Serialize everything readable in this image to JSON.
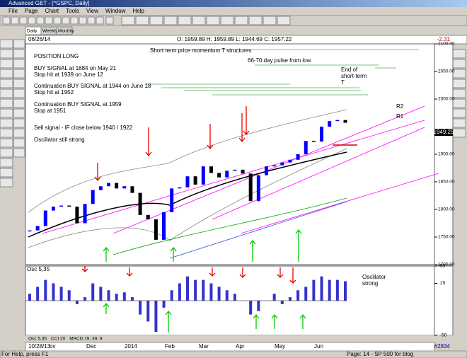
{
  "window": {
    "title": "Advanced GET - [^GSPC, Daily]",
    "menu": [
      "File",
      "Page",
      "Chart",
      "Tools",
      "View",
      "Window",
      "Help"
    ]
  },
  "tabs_top": [
    "Daily",
    "Weekly",
    "Monthly"
  ],
  "header": {
    "date": "06/26/14",
    "ohlc": "O: 1959.89  H: 1959.89  L: 1944.69  C: 1957.22",
    "change": "-2.31"
  },
  "chart_data": {
    "type": "candlestick-close",
    "closes": [
      1762,
      1770,
      1798,
      1805,
      1807,
      1805,
      1775,
      1810,
      1835,
      1842,
      1848,
      1838,
      1842,
      1830,
      1790,
      1782,
      1745,
      1795,
      1838,
      1840,
      1860,
      1845,
      1878,
      1866,
      1858,
      1870,
      1872,
      1865,
      1815,
      1862,
      1878,
      1880,
      1885,
      1890,
      1900,
      1924,
      1923,
      1950,
      1960,
      1962,
      1957
    ],
    "ylim": [
      1700,
      2100
    ],
    "yticks": [
      {
        "value": 2100,
        "label": "2100.00"
      },
      {
        "value": 2050,
        "label": "2050.00"
      },
      {
        "value": 2000,
        "label": "2000.00"
      },
      {
        "value": 1900,
        "label": "1900.00"
      },
      {
        "value": 1850,
        "label": "1850.00"
      },
      {
        "value": 1800,
        "label": "1800.00"
      },
      {
        "value": 1750,
        "label": "1750.00"
      },
      {
        "value": 1700,
        "label": "1700.00"
      }
    ],
    "last_price": "1949.25",
    "up_color": "#0000ff",
    "down_color": "#000000",
    "annotations": [
      "Short term price momentum T structures",
      "POSITION LONG",
      "66-70 day pulse from low",
      "BUY SIGNAL at 1884 on May 21",
      "Stop hit at 1939 on June 12",
      "End of",
      "short-term",
      "T",
      "Continuation BUY SIGNAL at 1944 on June 18",
      "Stop hit at 1952",
      "Continuation BUY SIGNAL at 1959",
      "Stop at 1951",
      "R2",
      "R1",
      "Sell signal - IF close below 1940 / 1922",
      "Oscillator still strong"
    ]
  },
  "oscillator": {
    "type": "bar",
    "title": "Osc 5,35",
    "values": [
      10,
      20,
      30,
      25,
      20,
      15,
      -5,
      5,
      25,
      20,
      15,
      10,
      12,
      5,
      -20,
      -30,
      -45,
      -10,
      15,
      25,
      35,
      30,
      30,
      25,
      20,
      15,
      10,
      0,
      -20,
      -15,
      0,
      10,
      -5,
      5,
      15,
      20,
      30,
      35,
      30,
      30,
      28
    ],
    "ylim": [
      -50,
      50
    ],
    "yticks": [
      50,
      25,
      -50
    ],
    "color": "#3333cc",
    "annotation": [
      "Oscillator",
      "strong"
    ]
  },
  "tabs_bottom": [
    "Osc 5,35",
    "CCI 20",
    "MACD 19, 39, 9"
  ],
  "x_labels": [
    "10/28/13",
    "ov",
    "Dec",
    "2014",
    "Feb",
    "Mar",
    "Apr",
    "May",
    "Jun"
  ],
  "bar_count": "#2834",
  "status": {
    "left": "For Help, press F1",
    "right": "Page: 14 - SP 500 for blog"
  }
}
